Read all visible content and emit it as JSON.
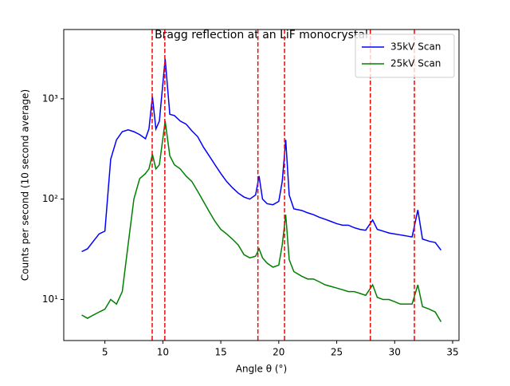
{
  "chart_data": {
    "type": "line",
    "title": "Bragg reflection at an LiF monocrystal",
    "xlabel": "Angle θ (°)",
    "ylabel": "Counts per second (10 second average)",
    "yscale": "log",
    "legend": "upper right",
    "xlim": [
      1.45,
      35.55
    ],
    "xticks": [
      5,
      10,
      15,
      20,
      25,
      30,
      35
    ],
    "ylim": [
      3.9,
      4900
    ],
    "yticks": [
      {
        "value": 10,
        "label": "10¹"
      },
      {
        "value": 100,
        "label": "10²"
      },
      {
        "value": 1000,
        "label": "10³"
      }
    ],
    "x": [
      3,
      3.5,
      4,
      4.5,
      5,
      5.5,
      6,
      6.5,
      7,
      7.5,
      8,
      8.5,
      8.8,
      9.1,
      9.4,
      9.7,
      10.2,
      10.6,
      11,
      11.5,
      12,
      12.5,
      13,
      13.5,
      14,
      14.5,
      15,
      15.5,
      16,
      16.5,
      17,
      17.5,
      18,
      18.3,
      18.6,
      19,
      19.5,
      20,
      20.3,
      20.6,
      20.9,
      21.3,
      22,
      22.5,
      23,
      23.5,
      24,
      24.5,
      25,
      25.5,
      26,
      26.5,
      27,
      27.5,
      28.1,
      28.5,
      29,
      29.5,
      30,
      30.5,
      31,
      31.5,
      32,
      32.4,
      33,
      33.5,
      34
    ],
    "series": [
      {
        "name": "35kV Scan",
        "color": "#0000ff",
        "values": [
          30,
          32,
          38,
          45,
          48,
          250,
          390,
          470,
          490,
          470,
          440,
          400,
          500,
          1050,
          500,
          600,
          2500,
          700,
          680,
          600,
          560,
          480,
          420,
          330,
          270,
          220,
          180,
          150,
          130,
          115,
          105,
          100,
          110,
          170,
          100,
          90,
          88,
          95,
          150,
          390,
          110,
          80,
          77,
          73,
          70,
          66,
          63,
          60,
          57,
          55,
          55,
          52,
          50,
          49,
          62,
          50,
          48,
          46,
          45,
          44,
          43,
          42,
          78,
          40,
          38,
          37,
          31
        ]
      },
      {
        "name": "25kV Scan",
        "color": "#008000",
        "values": [
          7,
          6.5,
          7,
          7.5,
          8,
          10,
          9,
          12,
          35,
          100,
          160,
          180,
          200,
          280,
          200,
          220,
          600,
          270,
          220,
          200,
          170,
          150,
          120,
          95,
          75,
          60,
          50,
          45,
          40,
          35,
          28,
          26,
          27,
          32,
          26,
          23,
          21,
          22,
          35,
          70,
          25,
          19,
          17,
          16,
          16,
          15,
          14,
          13.5,
          13,
          12.5,
          12,
          12,
          11.5,
          11,
          14,
          10.5,
          10,
          10,
          9.5,
          9,
          9,
          9,
          14,
          8.5,
          8,
          7.5,
          6
        ]
      }
    ],
    "vlines": [
      9.08,
      10.17,
      18.2,
      20.5,
      27.9,
      31.7
    ],
    "vline_color": "#ff0000"
  }
}
